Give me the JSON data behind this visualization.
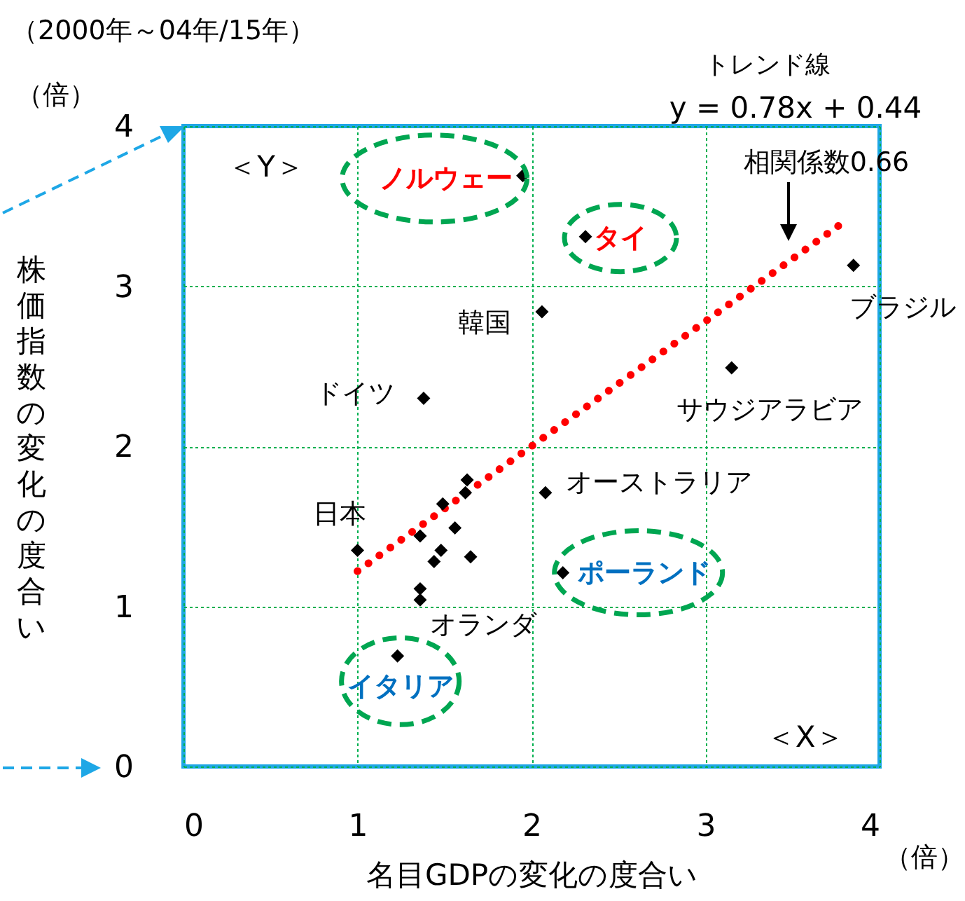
{
  "chart_data": {
    "type": "scatter",
    "subtitle": "（2000年～04年/15年）",
    "xlabel": "名目GDPの変化の度合い",
    "ylabel": "株価指数の変化の度合い",
    "xlim": [
      0,
      4
    ],
    "ylim": [
      0,
      4
    ],
    "xticks": [
      0,
      1,
      2,
      3,
      4
    ],
    "yticks": [
      0,
      1,
      2,
      3,
      4
    ],
    "grid": true,
    "marker": "diamond",
    "series": [
      {
        "color": "#000000",
        "x": [
          1.95,
          2.31,
          3.85,
          2.06,
          3.15,
          1.38,
          2.08,
          1.0,
          2.18,
          1.36,
          1.23,
          1.63,
          1.62,
          1.49,
          1.36,
          1.56,
          1.48,
          1.44,
          1.65,
          1.36
        ],
        "values": [
          3.69,
          3.31,
          3.13,
          2.84,
          2.49,
          2.3,
          1.71,
          1.35,
          1.21,
          1.04,
          0.69,
          1.79,
          1.71,
          1.64,
          1.44,
          1.49,
          1.35,
          1.28,
          1.31,
          1.11
        ]
      },
      {
        "type": "line",
        "color": "#ff0000",
        "line_style": "dotted",
        "marker": "none",
        "x": [
          1.0,
          3.78
        ],
        "values": [
          1.22,
          3.39
        ]
      }
    ],
    "annotations": [
      {
        "text": "ノルウェー",
        "x": 1.95,
        "y": 3.69
      },
      {
        "text": "タイ",
        "x": 2.31,
        "y": 3.31
      },
      {
        "text": "ポーランド",
        "x": 2.18,
        "y": 1.21
      },
      {
        "text": "イタリア",
        "x": 1.23,
        "y": 0.69
      },
      {
        "text": "ブラジル",
        "x": 3.85,
        "y": 3.13
      },
      {
        "text": "韓国",
        "x": 2.06,
        "y": 2.84
      },
      {
        "text": "サウジアラビア",
        "x": 3.15,
        "y": 2.49
      },
      {
        "text": "ドイツ",
        "x": 1.38,
        "y": 2.3
      },
      {
        "text": "オーストラリア",
        "x": 2.08,
        "y": 1.71
      },
      {
        "text": "日本",
        "x": 1.0,
        "y": 1.35
      },
      {
        "text": "オランダ",
        "x": 1.36,
        "y": 1.04
      },
      "トレンド線",
      "y = 0.78x + 0.44",
      "相関係数0.66",
      "＜Y＞",
      "＜X＞",
      "（倍）",
      "（倍）"
    ]
  }
}
